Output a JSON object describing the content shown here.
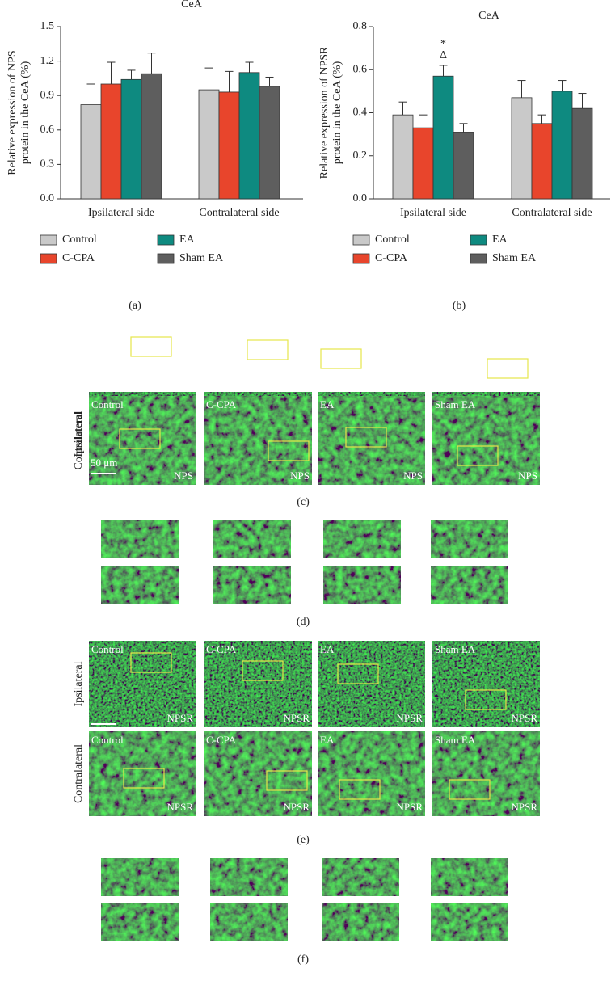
{
  "chart_data": [
    {
      "type": "bar",
      "title": "CeA",
      "ylabel": [
        "Relative expression of NPS",
        "protein in the CeA (%)"
      ],
      "categories": [
        "Ipsilateral side",
        "Contralateral side"
      ],
      "series": [
        {
          "name": "Control",
          "color": "#c9c9c9",
          "values": [
            0.82,
            0.95
          ],
          "errors": [
            0.18,
            0.19
          ]
        },
        {
          "name": "C-CPA",
          "color": "#e8452c",
          "values": [
            1.0,
            0.93
          ],
          "errors": [
            0.19,
            0.18
          ]
        },
        {
          "name": "EA",
          "color": "#0e8a80",
          "values": [
            1.04,
            1.1
          ],
          "errors": [
            0.08,
            0.09
          ]
        },
        {
          "name": "Sham EA",
          "color": "#5e5e5e",
          "values": [
            1.09,
            0.98
          ],
          "errors": [
            0.18,
            0.08
          ]
        }
      ],
      "ylim": [
        0,
        1.5
      ],
      "yticks": [
        {
          "value": 0,
          "label": "0.0"
        },
        0.3,
        0.6,
        0.9,
        1.2,
        1.5
      ],
      "panel_label": "(a)"
    },
    {
      "type": "bar",
      "title": "CeA",
      "ylabel": [
        "Relative expression of NPSR",
        "protein in the CeA (%)"
      ],
      "categories": [
        "Ipsilateral side",
        "Contralateral side"
      ],
      "series": [
        {
          "name": "Control",
          "color": "#c9c9c9",
          "values": [
            0.39,
            0.47
          ],
          "errors": [
            0.06,
            0.08
          ]
        },
        {
          "name": "C-CPA",
          "color": "#e8452c",
          "values": [
            0.33,
            0.35
          ],
          "errors": [
            0.06,
            0.04
          ]
        },
        {
          "name": "EA",
          "color": "#0e8a80",
          "values": [
            0.57,
            0.5
          ],
          "errors": [
            0.05,
            0.05
          ]
        },
        {
          "name": "Sham EA",
          "color": "#5e5e5e",
          "values": [
            0.31,
            0.42
          ],
          "errors": [
            0.04,
            0.07
          ]
        }
      ],
      "ylim": [
        0,
        0.8
      ],
      "yticks": [
        {
          "value": 0,
          "label": "0.0"
        },
        0.2,
        0.4,
        0.6,
        0.8
      ],
      "annotations": [
        "*",
        "Δ"
      ],
      "panel_label": "(b)"
    }
  ],
  "panels": {
    "c": {
      "label": "(c)",
      "rows": [
        "Ipsilateral",
        "Contralateral"
      ],
      "columns": [
        "Control",
        "C-CPA",
        "EA",
        "Sham EA"
      ],
      "marker": "NPS",
      "scale_bar": "50 μm"
    },
    "d": {
      "label": "(d)"
    },
    "e": {
      "label": "(e)",
      "rows": [
        "Ipsilateral",
        "Contralateral"
      ],
      "columns": [
        "Control",
        "C-CPA",
        "EA",
        "Sham EA"
      ],
      "marker": "NPSR"
    },
    "f": {
      "label": "(f)"
    }
  }
}
